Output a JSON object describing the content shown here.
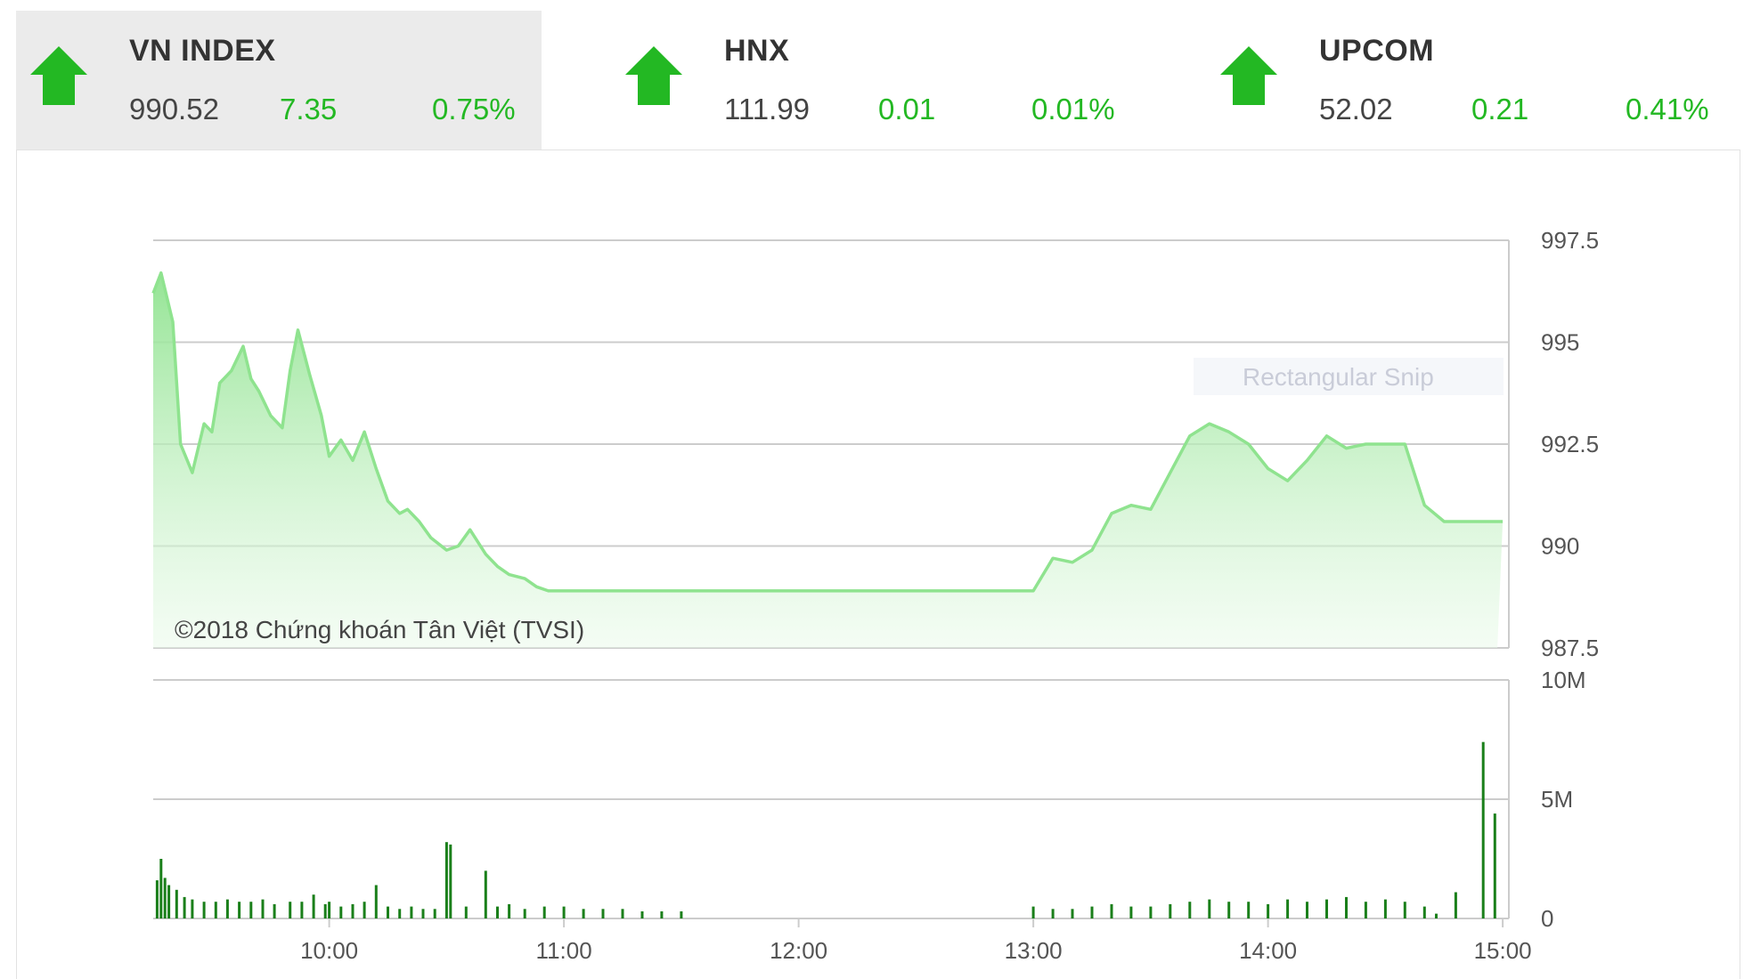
{
  "indices": [
    {
      "name": "VN INDEX",
      "price": "990.52",
      "change": "7.35",
      "percent": "0.75%",
      "direction": "up",
      "active": true
    },
    {
      "name": "HNX",
      "price": "111.99",
      "change": "0.01",
      "percent": "0.01%",
      "direction": "up",
      "active": false
    },
    {
      "name": "UPCOM",
      "price": "52.02",
      "change": "0.21",
      "percent": "0.41%",
      "direction": "up",
      "active": false
    }
  ],
  "watermark": "Rectangular Snip",
  "colors": {
    "up": "#23b823",
    "line": "#8fe38f",
    "volume": "#1a7f1a",
    "grid": "#cccccc"
  },
  "chart_data": [
    {
      "type": "area",
      "credit": "©2018 Chứng khoán Tân Việt (TVSI)",
      "yticks": [
        "997.5",
        "995",
        "992.5",
        "990",
        "987.5"
      ],
      "ylim": [
        987.5,
        997.5
      ],
      "xticks": [
        "10:00",
        "11:00",
        "12:00",
        "13:00",
        "14:00",
        "15:00"
      ],
      "xlim": [
        "09:15",
        "15:00"
      ],
      "grid": true,
      "x": [
        "09:15",
        "09:17",
        "09:20",
        "09:22",
        "09:25",
        "09:28",
        "09:30",
        "09:32",
        "09:35",
        "09:38",
        "09:40",
        "09:42",
        "09:45",
        "09:48",
        "09:50",
        "09:52",
        "09:55",
        "09:58",
        "10:00",
        "10:03",
        "10:06",
        "10:09",
        "10:12",
        "10:15",
        "10:18",
        "10:20",
        "10:23",
        "10:26",
        "10:30",
        "10:33",
        "10:36",
        "10:40",
        "10:43",
        "10:46",
        "10:50",
        "10:53",
        "10:56",
        "11:00",
        "11:03",
        "11:06",
        "11:10",
        "11:13",
        "11:16",
        "11:20",
        "11:23",
        "11:26",
        "11:30",
        "13:00",
        "13:05",
        "13:10",
        "13:15",
        "13:20",
        "13:25",
        "13:30",
        "13:35",
        "13:40",
        "13:45",
        "13:50",
        "13:55",
        "14:00",
        "14:05",
        "14:10",
        "14:15",
        "14:20",
        "14:25",
        "14:30",
        "14:35",
        "14:40",
        "14:45",
        "14:50",
        "15:00"
      ],
      "y": [
        996.2,
        996.7,
        995.5,
        992.5,
        991.8,
        993.0,
        992.8,
        994.0,
        994.3,
        994.9,
        994.1,
        993.8,
        993.2,
        992.9,
        994.3,
        995.3,
        994.2,
        993.2,
        992.2,
        992.6,
        992.1,
        992.8,
        991.9,
        991.1,
        990.8,
        990.9,
        990.6,
        990.2,
        989.9,
        990.0,
        990.4,
        989.8,
        989.5,
        989.3,
        989.2,
        989.0,
        988.9,
        988.9,
        988.9,
        988.9,
        988.9,
        988.9,
        988.9,
        988.9,
        988.9,
        988.9,
        988.9,
        988.9,
        989.7,
        989.6,
        989.9,
        990.8,
        991.0,
        990.9,
        991.8,
        992.7,
        993.0,
        992.8,
        992.5,
        991.9,
        991.6,
        992.1,
        992.7,
        992.4,
        992.5,
        992.5,
        992.5,
        991.0,
        990.6,
        990.6,
        990.6
      ],
      "series": [
        {
          "values_ref": "y"
        }
      ]
    },
    {
      "type": "bar",
      "yticks": [
        "10M",
        "5M",
        "0"
      ],
      "ylim": [
        0,
        10
      ],
      "xticks": [
        "10:00",
        "11:00",
        "12:00",
        "13:00",
        "14:00",
        "15:00"
      ],
      "x": [
        "09:16",
        "09:17",
        "09:18",
        "09:19",
        "09:21",
        "09:23",
        "09:25",
        "09:28",
        "09:31",
        "09:34",
        "09:37",
        "09:40",
        "09:43",
        "09:46",
        "09:50",
        "09:53",
        "09:56",
        "09:59",
        "10:00",
        "10:03",
        "10:06",
        "10:09",
        "10:12",
        "10:15",
        "10:18",
        "10:21",
        "10:24",
        "10:27",
        "10:30",
        "10:31",
        "10:35",
        "10:40",
        "10:43",
        "10:46",
        "10:50",
        "10:55",
        "11:00",
        "11:05",
        "11:10",
        "11:15",
        "11:20",
        "11:25",
        "11:30",
        "13:00",
        "13:05",
        "13:10",
        "13:15",
        "13:20",
        "13:25",
        "13:30",
        "13:35",
        "13:40",
        "13:45",
        "13:50",
        "13:55",
        "14:00",
        "14:05",
        "14:10",
        "14:15",
        "14:20",
        "14:25",
        "14:30",
        "14:35",
        "14:40",
        "14:43",
        "14:48",
        "14:55",
        "14:58"
      ],
      "values": [
        1.6,
        2.5,
        1.7,
        1.4,
        1.2,
        0.9,
        0.8,
        0.7,
        0.7,
        0.8,
        0.7,
        0.7,
        0.8,
        0.6,
        0.7,
        0.7,
        1.0,
        0.6,
        0.7,
        0.5,
        0.6,
        0.7,
        1.4,
        0.5,
        0.4,
        0.5,
        0.4,
        0.4,
        3.2,
        3.1,
        0.5,
        2.0,
        0.5,
        0.6,
        0.4,
        0.5,
        0.5,
        0.4,
        0.4,
        0.4,
        0.3,
        0.3,
        0.3,
        0.5,
        0.4,
        0.4,
        0.5,
        0.6,
        0.5,
        0.5,
        0.6,
        0.7,
        0.8,
        0.7,
        0.7,
        0.6,
        0.8,
        0.7,
        0.8,
        0.9,
        0.7,
        0.8,
        0.7,
        0.5,
        0.2,
        1.1,
        7.4,
        4.4
      ],
      "value_unit": "M"
    }
  ]
}
